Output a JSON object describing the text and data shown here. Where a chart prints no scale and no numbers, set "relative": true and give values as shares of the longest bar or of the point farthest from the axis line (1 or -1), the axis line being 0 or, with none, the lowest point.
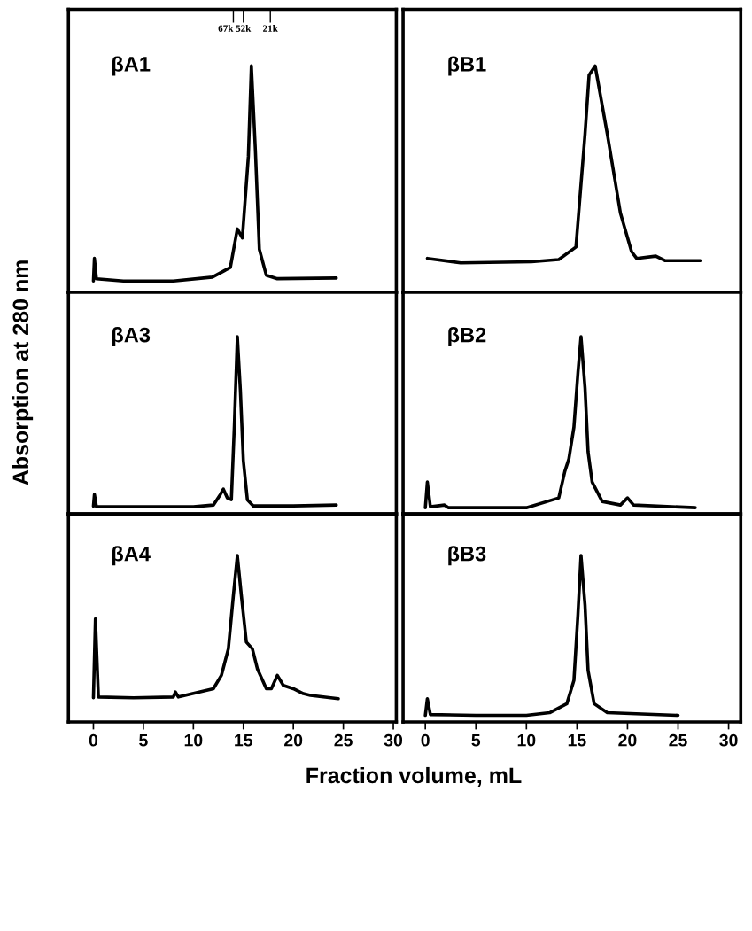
{
  "chart_data": [
    {
      "type": "line",
      "relative": true,
      "xlim": [
        -2.5,
        30.3
      ],
      "xticks": [
        0,
        5,
        10,
        15,
        20,
        25,
        30
      ],
      "tick_labels": false,
      "ref_lines": [
        {
          "axis": "x",
          "value": 14.0,
          "label": "67k"
        },
        {
          "axis": "x",
          "value": 15.0,
          "label": "52k"
        },
        {
          "axis": "x",
          "value": 17.7,
          "label": "21k"
        }
      ],
      "ylabel": "Absorption at 280 nm",
      "title": "βA1",
      "series": [
        {
          "color": "#000000",
          "x": [
            0,
            0.1,
            0.3,
            3,
            8,
            11.9,
            13.7,
            14.4,
            14.9,
            15.5,
            15.8,
            16.2,
            16.6,
            17.3,
            18.4,
            24.3
          ],
          "values": [
            0.05,
            0.15,
            0.06,
            0.05,
            0.05,
            0.067,
            0.11,
            0.28,
            0.24,
            0.6,
            1.0,
            0.63,
            0.19,
            0.075,
            0.06,
            0.063
          ]
        }
      ]
    },
    {
      "type": "line",
      "relative": true,
      "xlim": [
        -2.2,
        31.2
      ],
      "xticks": [
        0,
        5,
        10,
        15,
        20,
        25,
        30
      ],
      "tick_labels": false,
      "title": "βB1",
      "series": [
        {
          "color": "#000000",
          "x": [
            0.2,
            3.5,
            10.5,
            13.2,
            14.9,
            15.8,
            16.2,
            16.8,
            18.0,
            19.3,
            20.4,
            20.9,
            22.8,
            23.7,
            27.2
          ],
          "values": [
            0.15,
            0.13,
            0.135,
            0.145,
            0.2,
            0.7,
            0.96,
            1.0,
            0.7,
            0.35,
            0.18,
            0.15,
            0.16,
            0.14,
            0.14
          ]
        }
      ]
    },
    {
      "type": "line",
      "relative": true,
      "xlim": [
        -2.5,
        30.3
      ],
      "xticks": [
        0,
        5,
        10,
        15,
        20,
        25,
        30
      ],
      "tick_labels": false,
      "title": "βA3",
      "series": [
        {
          "color": "#000000",
          "x": [
            0,
            0.1,
            0.3,
            5,
            10,
            12,
            12.7,
            13.0,
            13.4,
            13.8,
            14.1,
            14.4,
            14.7,
            15.0,
            15.4,
            16,
            20,
            24.3
          ],
          "values": [
            0.044,
            0.11,
            0.04,
            0.04,
            0.04,
            0.05,
            0.11,
            0.14,
            0.09,
            0.08,
            0.5,
            1.0,
            0.7,
            0.3,
            0.08,
            0.045,
            0.045,
            0.05
          ]
        }
      ]
    },
    {
      "type": "line",
      "relative": true,
      "xlim": [
        -2.2,
        31.2
      ],
      "xticks": [
        0,
        5,
        10,
        15,
        20,
        25,
        30
      ],
      "tick_labels": false,
      "title": "βB2",
      "series": [
        {
          "color": "#000000",
          "x": [
            0,
            0.2,
            0.5,
            1.9,
            2.3,
            10,
            13.2,
            13.8,
            14.2,
            14.7,
            15.1,
            15.4,
            15.8,
            16.1,
            16.5,
            17.5,
            19.3,
            20.0,
            20.6,
            26.7
          ],
          "values": [
            0.035,
            0.18,
            0.04,
            0.05,
            0.035,
            0.035,
            0.09,
            0.24,
            0.31,
            0.49,
            0.8,
            1.0,
            0.71,
            0.35,
            0.18,
            0.07,
            0.05,
            0.09,
            0.05,
            0.035
          ]
        }
      ]
    },
    {
      "type": "line",
      "relative": true,
      "xlim": [
        -2.5,
        30.3
      ],
      "xticks": [
        0,
        5,
        10,
        15,
        20,
        25,
        30
      ],
      "tick_labels": "x",
      "title": "βA4",
      "series": [
        {
          "color": "#000000",
          "x": [
            0,
            0.2,
            0.5,
            4,
            8.0,
            8.2,
            8.5,
            12,
            12.8,
            13.5,
            14.0,
            14.4,
            14.8,
            15.3,
            15.9,
            16.4,
            17.3,
            17.8,
            18.4,
            19.0,
            20.0,
            21.0,
            21.7,
            24.5
          ],
          "values": [
            0.145,
            0.62,
            0.15,
            0.145,
            0.15,
            0.18,
            0.15,
            0.2,
            0.28,
            0.44,
            0.76,
            1.0,
            0.76,
            0.48,
            0.44,
            0.32,
            0.2,
            0.2,
            0.28,
            0.22,
            0.2,
            0.17,
            0.16,
            0.14
          ]
        }
      ]
    },
    {
      "type": "line",
      "relative": true,
      "xlim": [
        -2.2,
        31.2
      ],
      "xticks": [
        0,
        5,
        10,
        15,
        20,
        25,
        30
      ],
      "tick_labels": "x",
      "xlabel": "Fraction volume, mL",
      "title": "βB3",
      "series": [
        {
          "color": "#000000",
          "x": [
            0,
            0.2,
            0.5,
            5,
            10,
            12.3,
            14.0,
            14.7,
            15.1,
            15.4,
            15.8,
            16.1,
            16.7,
            18.0,
            25.0
          ],
          "values": [
            0.04,
            0.14,
            0.045,
            0.04,
            0.04,
            0.056,
            0.11,
            0.25,
            0.65,
            1.0,
            0.7,
            0.31,
            0.11,
            0.056,
            0.04
          ]
        }
      ]
    }
  ]
}
